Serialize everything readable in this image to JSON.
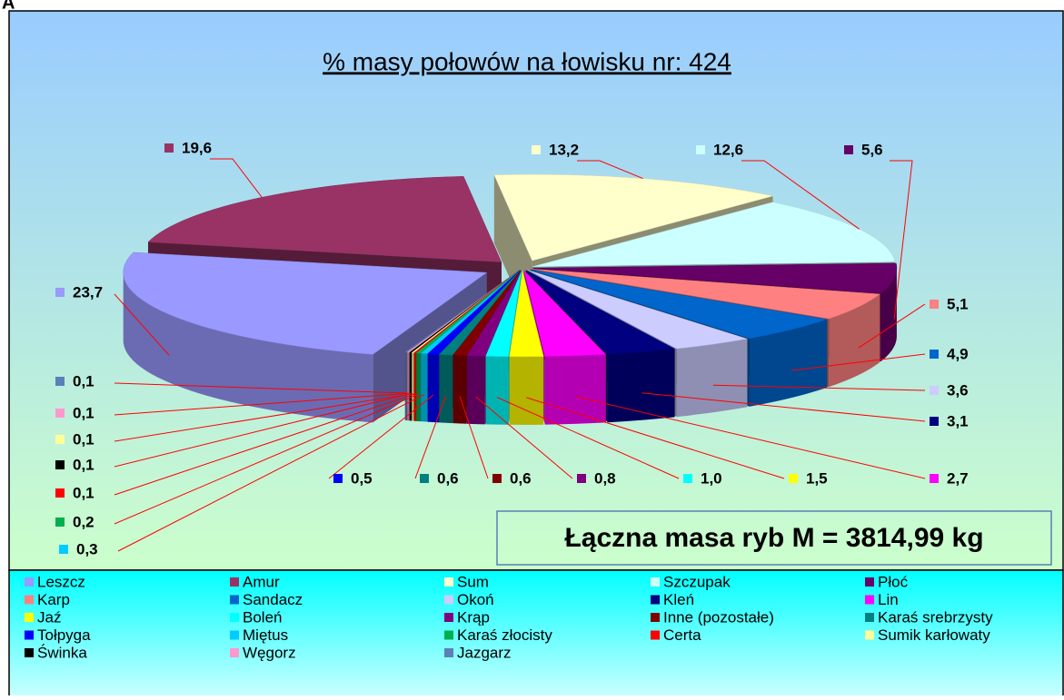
{
  "panel_label": "A",
  "chart_data": {
    "type": "pie3d",
    "title": "% masy połowów na łowisku nr:  424",
    "annotation": "Łączna masa ryb M = 3814,99 kg",
    "categories": [
      "Leszcz",
      "Amur",
      "Sum",
      "Szczupak",
      "Płoć",
      "Karp",
      "Sandacz",
      "Okoń",
      "Kleń",
      "Lin",
      "Jaź",
      "Boleń",
      "Krąp",
      "Inne (pozostałe)",
      "Karaś srebrzysty",
      "Tołpyga",
      "Miętus",
      "Karaś złocisty",
      "Certa",
      "Sumik karłowaty",
      "Świnka",
      "Węgorz",
      "Jazgarz"
    ],
    "values": [
      23.7,
      19.6,
      13.2,
      12.6,
      5.6,
      5.1,
      4.9,
      3.6,
      3.1,
      2.7,
      1.5,
      1.0,
      0.8,
      0.6,
      0.6,
      0.5,
      0.3,
      0.2,
      0.1,
      0.1,
      0.1,
      0.1,
      0.1
    ],
    "value_labels": [
      "23,7",
      "19,6",
      "13,2",
      "12,6",
      "5,6",
      "5,1",
      "4,9",
      "3,6",
      "3,1",
      "2,7",
      "1,5",
      "1,0",
      "0,8",
      "0,6",
      "0,6",
      "0,5",
      "0,3",
      "0,2",
      "0,1",
      "0,1",
      "0,1",
      "0,1",
      "0,1"
    ],
    "colors": [
      "#9999ff",
      "#993366",
      "#ffffcc",
      "#ccffff",
      "#660066",
      "#ff8080",
      "#0066cc",
      "#ccccff",
      "#000080",
      "#ff00ff",
      "#ffff00",
      "#00ffff",
      "#800080",
      "#800000",
      "#008080",
      "#0000ff",
      "#00ccff",
      "#00b050",
      "#ff0000",
      "#ffff99",
      "#000000",
      "#ff99cc",
      "#5b7fb8"
    ],
    "legend": "bottom"
  }
}
